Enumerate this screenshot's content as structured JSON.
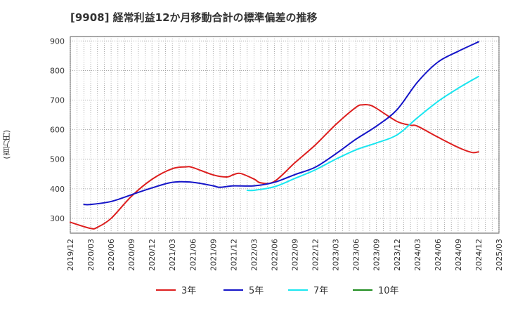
{
  "chart_data": {
    "type": "line",
    "title": "[9908]  経常利益12か月移動合計の標準偏差の推移",
    "ylabel": "(百万円)",
    "ylim": [
      250,
      915
    ],
    "yticks": [
      300,
      400,
      500,
      600,
      700,
      800,
      900
    ],
    "xlim": [
      "2019/12",
      "2025/03"
    ],
    "xticks": [
      "2019/12",
      "2020/03",
      "2020/06",
      "2020/09",
      "2020/12",
      "2021/03",
      "2021/06",
      "2021/09",
      "2021/12",
      "2022/03",
      "2022/06",
      "2022/09",
      "2022/12",
      "2023/03",
      "2023/06",
      "2023/09",
      "2023/12",
      "2024/03",
      "2024/06",
      "2024/09",
      "2024/12",
      "2025/03"
    ],
    "grid": true,
    "legend_position": "bottom",
    "series": [
      {
        "name": "3年",
        "color": "#dd1e1e",
        "x": [
          "2019/12",
          "2020/03",
          "2020/04",
          "2020/06",
          "2020/09",
          "2020/12",
          "2021/03",
          "2021/05",
          "2021/06",
          "2021/09",
          "2021/11",
          "2021/12",
          "2022/01",
          "2022/03",
          "2022/04",
          "2022/06",
          "2022/09",
          "2022/12",
          "2023/03",
          "2023/06",
          "2023/07",
          "2023/08",
          "2023/09",
          "2023/12",
          "2024/02",
          "2024/03",
          "2024/06",
          "2024/09",
          "2024/11",
          "2024/12"
        ],
        "values": [
          287,
          266,
          270,
          300,
          375,
          432,
          468,
          474,
          472,
          447,
          440,
          448,
          452,
          433,
          420,
          425,
          488,
          548,
          617,
          676,
          684,
          683,
          672,
          628,
          615,
          612,
          575,
          540,
          523,
          525
        ]
      },
      {
        "name": "5年",
        "color": "#1414c8",
        "x": [
          "2020/02",
          "2020/03",
          "2020/06",
          "2020/09",
          "2020/12",
          "2021/03",
          "2021/06",
          "2021/09",
          "2021/10",
          "2021/12",
          "2022/03",
          "2022/06",
          "2022/09",
          "2022/12",
          "2023/03",
          "2023/06",
          "2023/09",
          "2023/12",
          "2024/03",
          "2024/06",
          "2024/09",
          "2024/12"
        ],
        "values": [
          347,
          347,
          357,
          380,
          403,
          422,
          422,
          410,
          405,
          410,
          410,
          422,
          448,
          473,
          518,
          568,
          612,
          667,
          760,
          828,
          865,
          897
        ]
      },
      {
        "name": "7年",
        "color": "#19e6f0",
        "x": [
          "2022/02",
          "2022/03",
          "2022/06",
          "2022/09",
          "2022/12",
          "2023/03",
          "2023/06",
          "2023/09",
          "2023/12",
          "2024/03",
          "2024/06",
          "2024/09",
          "2024/12"
        ],
        "values": [
          395,
          395,
          407,
          435,
          464,
          500,
          532,
          555,
          582,
          640,
          695,
          740,
          780
        ]
      },
      {
        "name": "10年",
        "color": "#1e8c1e",
        "x": [],
        "values": []
      }
    ]
  }
}
